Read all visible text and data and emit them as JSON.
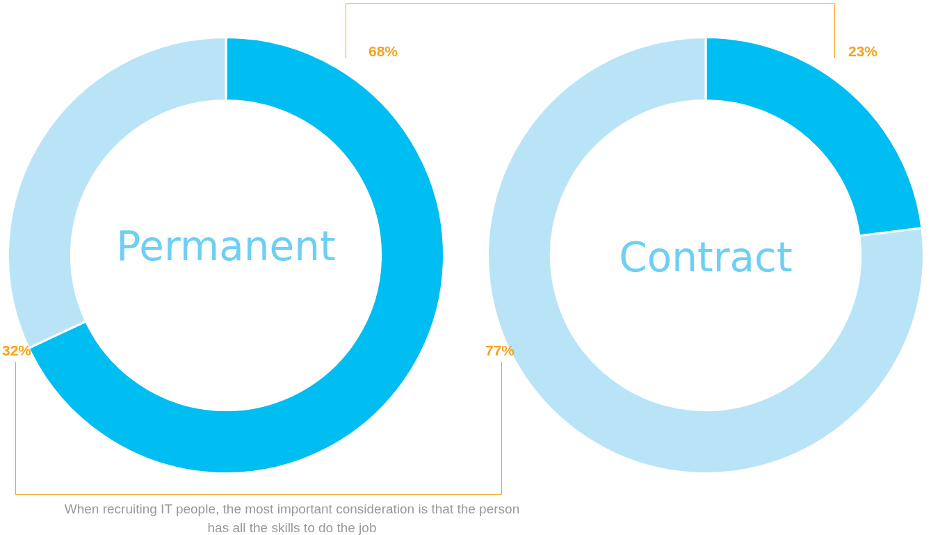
{
  "chart_data": [
    {
      "type": "donut",
      "title": "Permanent",
      "categories": [
        null,
        null
      ],
      "values": [
        68,
        32
      ],
      "value_labels": [
        "68%",
        "32%"
      ],
      "colors": [
        "#00bdf2",
        "#b9e4f7"
      ],
      "annotations": [
        "When recruiting IT people, the most important consideration is that the person has all the skills to do the job"
      ]
    },
    {
      "type": "donut",
      "title": "Contract",
      "categories": [
        null,
        null
      ],
      "values": [
        23,
        77
      ],
      "value_labels": [
        "23%",
        "77%"
      ],
      "colors": [
        "#00bdf2",
        "#b9e4f7"
      ]
    }
  ]
}
